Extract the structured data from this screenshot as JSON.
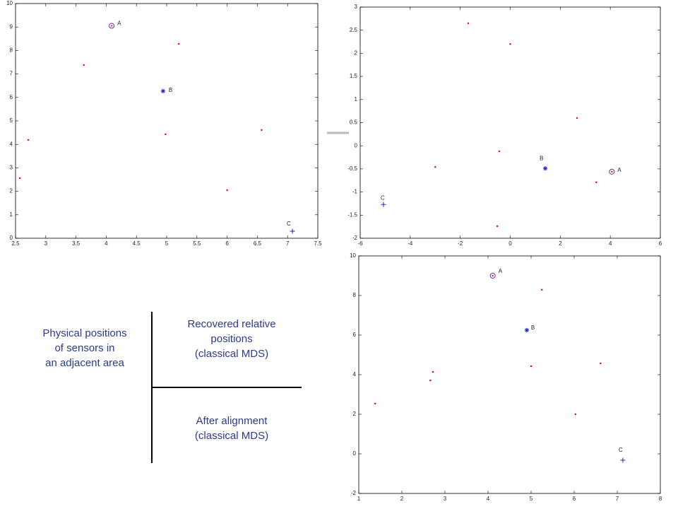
{
  "chart_data": [
    {
      "type": "scatter",
      "xlim": [
        2.5,
        7.5
      ],
      "ylim": [
        0,
        10
      ],
      "xticks": [
        2.5,
        3,
        3.5,
        4,
        4.5,
        5,
        5.5,
        6,
        6.5,
        7,
        7.5
      ],
      "yticks": [
        0,
        1,
        2,
        3,
        4,
        5,
        6,
        7,
        8,
        9,
        10
      ],
      "series": [
        {
          "marker": "dot",
          "color": "#e00000",
          "x": [
            5.2,
            3.63,
            2.71,
            4.98,
            6.57,
            2.57,
            6.0
          ],
          "y": [
            8.28,
            7.38,
            4.19,
            4.43,
            4.61,
            2.56,
            2.05
          ]
        },
        {
          "marker": "circle-dot",
          "color": "#7030a0",
          "label": "A",
          "x": [
            4.09
          ],
          "y": [
            9.05
          ]
        },
        {
          "marker": "star",
          "color": "#2020c0",
          "label": "B",
          "x": [
            4.94
          ],
          "y": [
            6.27
          ]
        },
        {
          "marker": "plus",
          "color": "#2020c0",
          "label": "C",
          "x": [
            7.08
          ],
          "y": [
            0.3
          ]
        }
      ]
    },
    {
      "type": "scatter",
      "xlim": [
        -6,
        6
      ],
      "ylim": [
        -2,
        3
      ],
      "xticks": [
        -6,
        -4,
        -2,
        0,
        2,
        4,
        6
      ],
      "yticks": [
        -2,
        -1.5,
        -1,
        -0.5,
        0,
        0.5,
        1,
        1.5,
        2,
        2.5,
        3
      ],
      "series": [
        {
          "marker": "dot",
          "color": "#e00000",
          "x": [
            -1.68,
            0,
            2.67,
            -0.44,
            -3.0,
            3.44,
            -0.52
          ],
          "y": [
            2.65,
            2.2,
            0.6,
            -0.12,
            -0.46,
            -0.79,
            -1.74
          ]
        },
        {
          "marker": "circle-dot",
          "color": "#7030a0",
          "label": "A",
          "x": [
            4.06
          ],
          "y": [
            -0.56
          ]
        },
        {
          "marker": "star",
          "color": "#2020c0",
          "label": "B",
          "x": [
            1.4
          ],
          "y": [
            -0.49
          ]
        },
        {
          "marker": "plus",
          "color": "#2020c0",
          "label": "C",
          "x": [
            -5.07
          ],
          "y": [
            -1.27
          ]
        }
      ]
    },
    {
      "type": "scatter",
      "xlim": [
        1,
        8
      ],
      "ylim": [
        -2,
        10
      ],
      "xticks": [
        1,
        2,
        3,
        4,
        5,
        6,
        7,
        8
      ],
      "yticks": [
        -2,
        0,
        2,
        4,
        6,
        8,
        10
      ],
      "series": [
        {
          "marker": "dot",
          "color": "#e00000",
          "x": [
            5.25,
            6.61,
            5.0,
            2.72,
            2.66,
            1.38,
            6.03
          ],
          "y": [
            8.29,
            4.57,
            4.43,
            4.14,
            3.71,
            2.54,
            2.0
          ]
        },
        {
          "marker": "circle-dot",
          "color": "#7030a0",
          "label": "A",
          "x": [
            4.11
          ],
          "y": [
            9.0
          ]
        },
        {
          "marker": "star",
          "color": "#2020c0",
          "label": "B",
          "x": [
            4.9
          ],
          "y": [
            6.25
          ]
        },
        {
          "marker": "plus",
          "color": "#2020c0",
          "label": "C",
          "x": [
            7.13
          ],
          "y": [
            -0.32
          ]
        }
      ]
    }
  ],
  "captions": {
    "physical": [
      "Physical positions",
      "of sensors in",
      "an adjacent area"
    ],
    "recovered": [
      "Recovered relative",
      "positions",
      "(classical MDS)"
    ],
    "aligned": [
      "After alignment",
      "(classical MDS)"
    ]
  }
}
